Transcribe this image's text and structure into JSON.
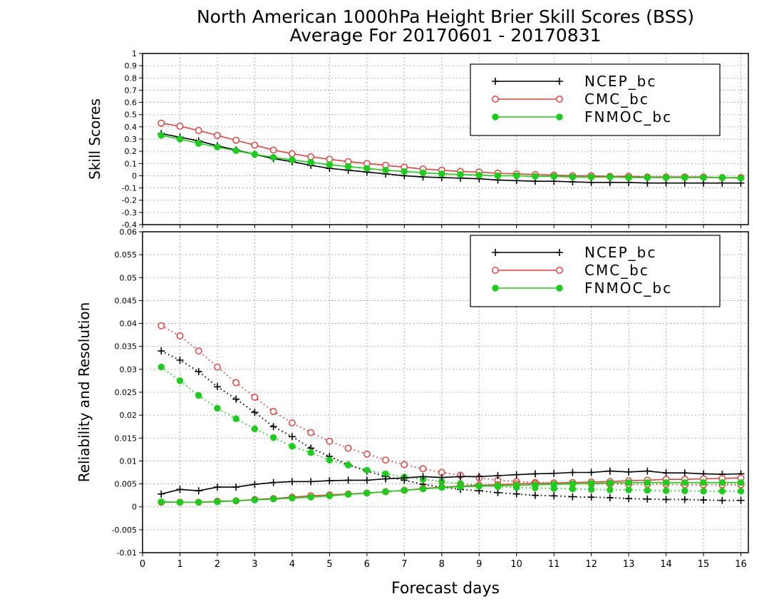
{
  "title_line1": "North American 1000hPa Height Brier Skill Scores (BSS)",
  "title_line2": "Average For 20170601 - 20170831",
  "colors": {
    "NCEP_bc": "#000000",
    "CMC_bc": "#e8403c",
    "FNMOC_bc": "#16d116"
  },
  "chart_data": [
    {
      "type": "line",
      "ylabel": "Skill Scores",
      "xlabel": "",
      "xlim": [
        0,
        16.2
      ],
      "ylim": [
        -0.4,
        1
      ],
      "xticks": [
        "0",
        "1",
        "2",
        "3",
        "4",
        "5",
        "6",
        "7",
        "8",
        "9",
        "10",
        "11",
        "12",
        "13",
        "14",
        "15",
        "16"
      ],
      "yticks": [
        "-0.4",
        "-0.3",
        "-0.2",
        "-0.1",
        "0",
        "0.1",
        "0.2",
        "0.3",
        "0.4",
        "0.5",
        "0.6",
        "0.7",
        "0.8",
        "0.9",
        "1"
      ],
      "grid": true,
      "legend": {
        "position": "top-right",
        "entries": [
          "NCEP_bc",
          "CMC_bc",
          "FNMOC_bc"
        ]
      },
      "x": [
        0.5,
        1,
        1.5,
        2,
        2.5,
        3,
        3.5,
        4,
        4.5,
        5,
        5.5,
        6,
        6.5,
        7,
        7.5,
        8,
        8.5,
        9,
        9.5,
        10,
        10.5,
        11,
        11.5,
        12,
        12.5,
        13,
        13.5,
        14,
        14.5,
        15,
        15.5,
        16
      ],
      "series": [
        {
          "name": "NCEP_bc",
          "style": "solid",
          "marker": "plus",
          "values": [
            0.345,
            0.315,
            0.285,
            0.245,
            0.21,
            0.175,
            0.14,
            0.115,
            0.085,
            0.06,
            0.045,
            0.03,
            0.015,
            0.0,
            -0.01,
            -0.015,
            -0.02,
            -0.025,
            -0.035,
            -0.04,
            -0.045,
            -0.045,
            -0.05,
            -0.055,
            -0.055,
            -0.055,
            -0.06,
            -0.06,
            -0.06,
            -0.06,
            -0.06,
            -0.06
          ]
        },
        {
          "name": "CMC_bc",
          "style": "solid",
          "marker": "circle-open",
          "values": [
            0.43,
            0.405,
            0.37,
            0.33,
            0.29,
            0.25,
            0.21,
            0.18,
            0.155,
            0.135,
            0.115,
            0.1,
            0.085,
            0.07,
            0.055,
            0.045,
            0.035,
            0.03,
            0.02,
            0.015,
            0.01,
            0.005,
            0.0,
            0.0,
            -0.005,
            -0.005,
            -0.01,
            -0.01,
            -0.01,
            -0.01,
            -0.015,
            -0.015
          ]
        },
        {
          "name": "FNMOC_bc",
          "style": "solid",
          "marker": "circle-filled",
          "values": [
            0.33,
            0.3,
            0.265,
            0.235,
            0.205,
            0.175,
            0.15,
            0.13,
            0.11,
            0.09,
            0.075,
            0.06,
            0.045,
            0.035,
            0.025,
            0.015,
            0.01,
            0.005,
            0.0,
            0.0,
            -0.005,
            -0.005,
            -0.01,
            -0.01,
            -0.01,
            -0.015,
            -0.015,
            -0.015,
            -0.015,
            -0.015,
            -0.015,
            -0.02
          ]
        }
      ]
    },
    {
      "type": "line",
      "ylabel": "Reliability and Resolution",
      "xlabel": "Forecast days",
      "xlim": [
        0,
        16.2
      ],
      "ylim": [
        -0.01,
        0.06
      ],
      "xticks": [
        "0",
        "1",
        "2",
        "3",
        "4",
        "5",
        "6",
        "7",
        "8",
        "9",
        "10",
        "11",
        "12",
        "13",
        "14",
        "15",
        "16"
      ],
      "yticks": [
        "-0.01",
        "-0.005",
        "0",
        "0.005",
        "0.01",
        "0.015",
        "0.02",
        "0.025",
        "0.03",
        "0.035",
        "0.04",
        "0.045",
        "0.05",
        "0.055",
        "0.06"
      ],
      "grid": true,
      "legend": {
        "position": "top-right",
        "entries": [
          "NCEP_bc",
          "CMC_bc",
          "FNMOC_bc"
        ]
      },
      "x": [
        0.5,
        1,
        1.5,
        2,
        2.5,
        3,
        3.5,
        4,
        4.5,
        5,
        5.5,
        6,
        6.5,
        7,
        7.5,
        8,
        8.5,
        9,
        9.5,
        10,
        10.5,
        11,
        11.5,
        12,
        12.5,
        13,
        13.5,
        14,
        14.5,
        15,
        15.5,
        16
      ],
      "series": [
        {
          "name": "NCEP_bc",
          "style": "solid",
          "marker": "plus",
          "values": [
            0.0028,
            0.0038,
            0.0035,
            0.0043,
            0.0043,
            0.0049,
            0.0053,
            0.0055,
            0.0055,
            0.0057,
            0.0058,
            0.0058,
            0.0061,
            0.0063,
            0.0066,
            0.0064,
            0.0066,
            0.0066,
            0.0068,
            0.007,
            0.0072,
            0.0073,
            0.0075,
            0.0075,
            0.0078,
            0.0076,
            0.0078,
            0.0074,
            0.0074,
            0.0072,
            0.0071,
            0.0072
          ]
        },
        {
          "name": "NCEP_bc",
          "style": "dotted",
          "marker": "plus",
          "values": [
            0.034,
            0.032,
            0.0295,
            0.0262,
            0.0235,
            0.0206,
            0.0175,
            0.0153,
            0.0128,
            0.011,
            0.0092,
            0.0078,
            0.0066,
            0.0058,
            0.0049,
            0.0043,
            0.0038,
            0.0035,
            0.0031,
            0.0028,
            0.0025,
            0.0024,
            0.0022,
            0.0021,
            0.002,
            0.0018,
            0.0017,
            0.0016,
            0.0016,
            0.0015,
            0.0014,
            0.0014
          ]
        },
        {
          "name": "CMC_bc",
          "style": "solid",
          "marker": "circle-open",
          "values": [
            0.001,
            0.001,
            0.001,
            0.0012,
            0.0013,
            0.0016,
            0.0018,
            0.0021,
            0.0024,
            0.0026,
            0.0028,
            0.003,
            0.0033,
            0.0036,
            0.004,
            0.0043,
            0.0045,
            0.0047,
            0.0048,
            0.005,
            0.0051,
            0.0052,
            0.0053,
            0.0054,
            0.0055,
            0.0057,
            0.0058,
            0.006,
            0.006,
            0.0061,
            0.0062,
            0.0063
          ]
        },
        {
          "name": "CMC_bc",
          "style": "dotted",
          "marker": "circle-open",
          "values": [
            0.0395,
            0.0373,
            0.034,
            0.0305,
            0.0271,
            0.0239,
            0.0208,
            0.0183,
            0.0162,
            0.0143,
            0.0128,
            0.0115,
            0.0102,
            0.0092,
            0.0083,
            0.0075,
            0.0069,
            0.0063,
            0.0058,
            0.0055,
            0.0053,
            0.0052,
            0.0051,
            0.005,
            0.005,
            0.0049,
            0.0049,
            0.0049,
            0.0048,
            0.0048,
            0.0048,
            0.0048
          ]
        },
        {
          "name": "FNMOC_bc",
          "style": "solid",
          "marker": "circle-filled",
          "values": [
            0.0011,
            0.001,
            0.001,
            0.0011,
            0.0013,
            0.0015,
            0.0017,
            0.0019,
            0.0021,
            0.0024,
            0.0027,
            0.003,
            0.0033,
            0.0036,
            0.0039,
            0.0042,
            0.0044,
            0.0045,
            0.0046,
            0.0047,
            0.0048,
            0.0049,
            0.005,
            0.0051,
            0.0052,
            0.0053,
            0.0053,
            0.0053,
            0.0053,
            0.0053,
            0.0053,
            0.0053
          ]
        },
        {
          "name": "FNMOC_bc",
          "style": "dotted",
          "marker": "circle-filled",
          "values": [
            0.0305,
            0.0275,
            0.0243,
            0.0215,
            0.0192,
            0.017,
            0.0151,
            0.0132,
            0.0118,
            0.0102,
            0.0091,
            0.008,
            0.0072,
            0.0065,
            0.006,
            0.0055,
            0.0051,
            0.0047,
            0.0044,
            0.0042,
            0.0041,
            0.004,
            0.0039,
            0.0038,
            0.0037,
            0.0037,
            0.0036,
            0.0035,
            0.0035,
            0.0034,
            0.0034,
            0.0034
          ]
        }
      ]
    }
  ]
}
